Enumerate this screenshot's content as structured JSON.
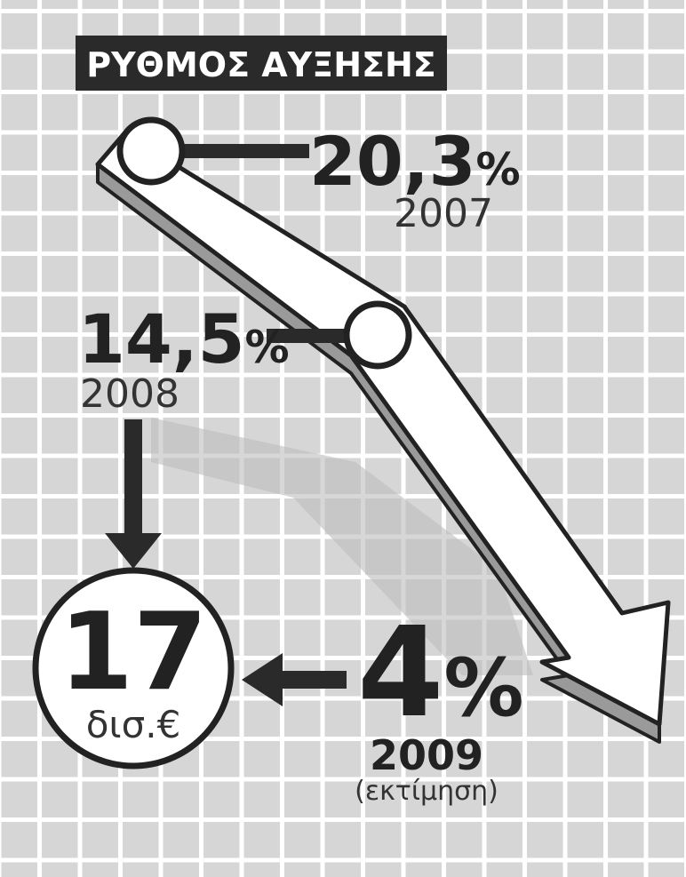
{
  "title": "ΡΥΘΜΟΣ ΑΥΞΗΣΗΣ",
  "points": [
    {
      "value": "20,3",
      "unit": "%",
      "year": "2007"
    },
    {
      "value": "14,5",
      "unit": "%",
      "year": "2008"
    },
    {
      "value": "4",
      "unit": "%",
      "year": "2009",
      "note": "(εκτίμηση)"
    }
  ],
  "total": {
    "value": "17",
    "unit": "δισ.€"
  }
}
